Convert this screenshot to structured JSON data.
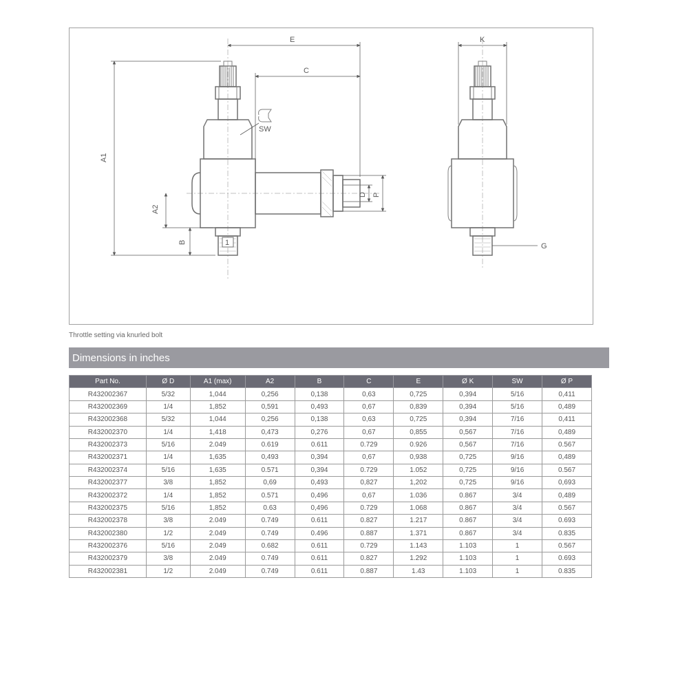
{
  "drawing": {
    "caption": "Throttle setting via knurled bolt",
    "labels": {
      "A1": "A1",
      "A2": "A2",
      "B": "B",
      "C": "C",
      "D": "D",
      "E": "E",
      "G": "G",
      "K": "K",
      "P": "P",
      "SW": "SW",
      "port1": "1"
    },
    "line_color": "#808080",
    "dim_color": "#5a5a5a",
    "background": "#ffffff"
  },
  "section": {
    "title": "Dimensions in inches"
  },
  "table": {
    "header_bg": "#6b6b75",
    "header_fg": "#ffffff",
    "border_color": "#9a9a9a",
    "cell_fg": "#555555",
    "columns": [
      "Part No.",
      "Ø D",
      "A1 (max)",
      "A2",
      "B",
      "C",
      "E",
      "Ø K",
      "SW",
      "Ø P"
    ],
    "rows": [
      [
        "R432002367",
        "5/32",
        "1,044",
        "0,256",
        "0,138",
        "0,63",
        "0,725",
        "0,394",
        "5/16",
        "0,411"
      ],
      [
        "R432002369",
        "1/4",
        "1,852",
        "0,591",
        "0,493",
        "0,67",
        "0,839",
        "0,394",
        "5/16",
        "0,489"
      ],
      [
        "R432002368",
        "5/32",
        "1,044",
        "0,256",
        "0,138",
        "0,63",
        "0,725",
        "0,394",
        "7/16",
        "0,411"
      ],
      [
        "R432002370",
        "1/4",
        "1,418",
        "0,473",
        "0,276",
        "0,67",
        "0,855",
        "0,567",
        "7/16",
        "0,489"
      ],
      [
        "R432002373",
        "5/16",
        "2.049",
        "0.619",
        "0.611",
        "0.729",
        "0.926",
        "0,567",
        "7/16",
        "0.567"
      ],
      [
        "R432002371",
        "1/4",
        "1,635",
        "0,493",
        "0,394",
        "0,67",
        "0,938",
        "0,725",
        "9/16",
        "0,489"
      ],
      [
        "R432002374",
        "5/16",
        "1,635",
        "0.571",
        "0,394",
        "0.729",
        "1.052",
        "0,725",
        "9/16",
        "0.567"
      ],
      [
        "R432002377",
        "3/8",
        "1,852",
        "0,69",
        "0,493",
        "0,827",
        "1,202",
        "0,725",
        "9/16",
        "0,693"
      ],
      [
        "R432002372",
        "1/4",
        "1,852",
        "0.571",
        "0,496",
        "0,67",
        "1.036",
        "0.867",
        "3/4",
        "0,489"
      ],
      [
        "R432002375",
        "5/16",
        "1,852",
        "0.63",
        "0,496",
        "0.729",
        "1.068",
        "0.867",
        "3/4",
        "0.567"
      ],
      [
        "R432002378",
        "3/8",
        "2.049",
        "0.749",
        "0.611",
        "0.827",
        "1.217",
        "0.867",
        "3/4",
        "0.693"
      ],
      [
        "R432002380",
        "1/2",
        "2.049",
        "0.749",
        "0.496",
        "0.887",
        "1.371",
        "0.867",
        "3/4",
        "0.835"
      ],
      [
        "R432002376",
        "5/16",
        "2.049",
        "0.682",
        "0.611",
        "0.729",
        "1.143",
        "1.103",
        "1",
        "0.567"
      ],
      [
        "R432002379",
        "3/8",
        "2.049",
        "0.749",
        "0.611",
        "0.827",
        "1.292",
        "1.103",
        "1",
        "0.693"
      ],
      [
        "R432002381",
        "1/2",
        "2.049",
        "0.749",
        "0.611",
        "0.887",
        "1.43",
        "1.103",
        "1",
        "0.835"
      ]
    ],
    "col_widths_pct": [
      14,
      8,
      10,
      9,
      9,
      9,
      9,
      9,
      9,
      9
    ]
  }
}
